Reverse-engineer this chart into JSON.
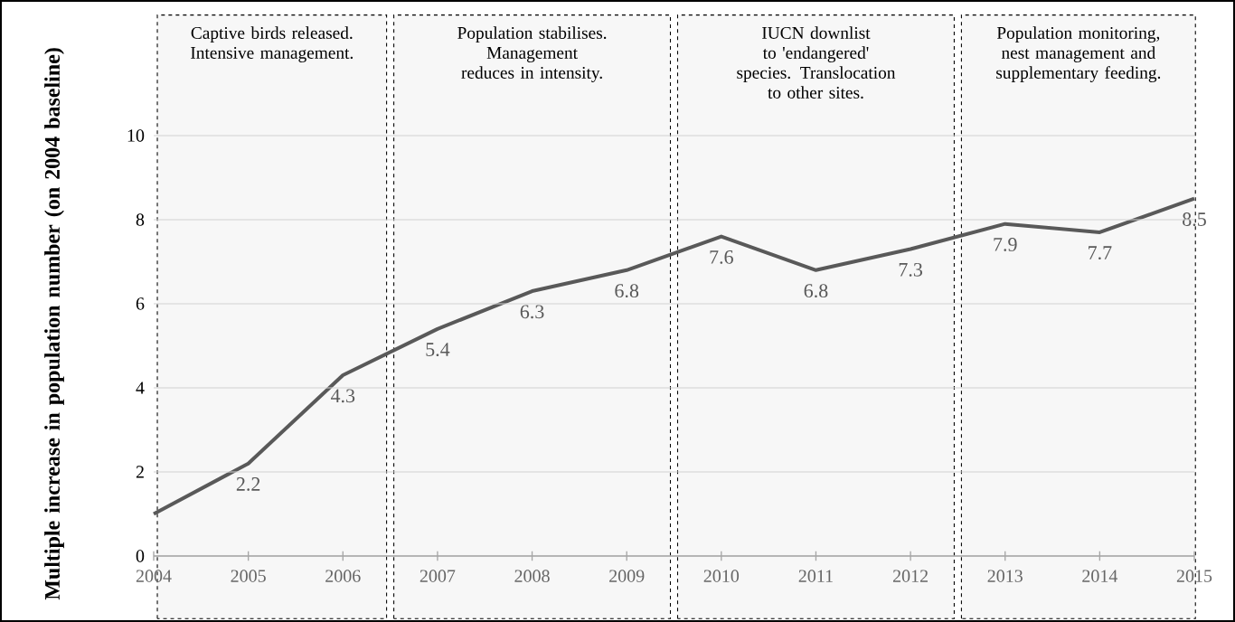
{
  "chart_data": {
    "type": "line",
    "ylabel": "Multiple increase in population number (on 2004 baseline)",
    "x": [
      2004,
      2005,
      2006,
      2007,
      2008,
      2009,
      2010,
      2011,
      2012,
      2013,
      2014,
      2015
    ],
    "series": [
      {
        "color": "#595959",
        "values": [
          1.0,
          2.2,
          4.3,
          5.4,
          6.3,
          6.8,
          7.6,
          6.8,
          7.3,
          7.9,
          7.7,
          8.5
        ],
        "value_labels": [
          null,
          "2.2",
          "4.3",
          "5.4",
          "6.3",
          "6.8",
          "7.6",
          "6.8",
          "7.3",
          "7.9",
          "7.7",
          "8.5"
        ]
      }
    ],
    "xlim": [
      2004,
      2015
    ],
    "xticks": [
      2004,
      2005,
      2006,
      2007,
      2008,
      2009,
      2010,
      2011,
      2012,
      2013,
      2014,
      2015
    ],
    "ylim": [
      0,
      10
    ],
    "yticks": [
      0,
      2,
      4,
      6,
      8,
      10
    ],
    "grid": "y",
    "marker": "none",
    "line_style": "solid",
    "bands": [
      {
        "axis": "x",
        "from": 2004,
        "to": 2006.5,
        "label": "Captive birds released. Intensive management.",
        "color": "#f7f7f7"
      },
      {
        "axis": "x",
        "from": 2006.5,
        "to": 2009.5,
        "label": "Population stabilises. Management reduces in intensity.",
        "color": "#f7f7f7"
      },
      {
        "axis": "x",
        "from": 2009.5,
        "to": 2012.5,
        "label": "IUCN downlist to 'endangered' species. Translocation to other sites.",
        "color": "#f7f7f7"
      },
      {
        "axis": "x",
        "from": 2012.5,
        "to": 2015.05,
        "label": "Population monitoring, nest management and supplementary feeding.",
        "color": "#f7f7f7"
      }
    ]
  }
}
